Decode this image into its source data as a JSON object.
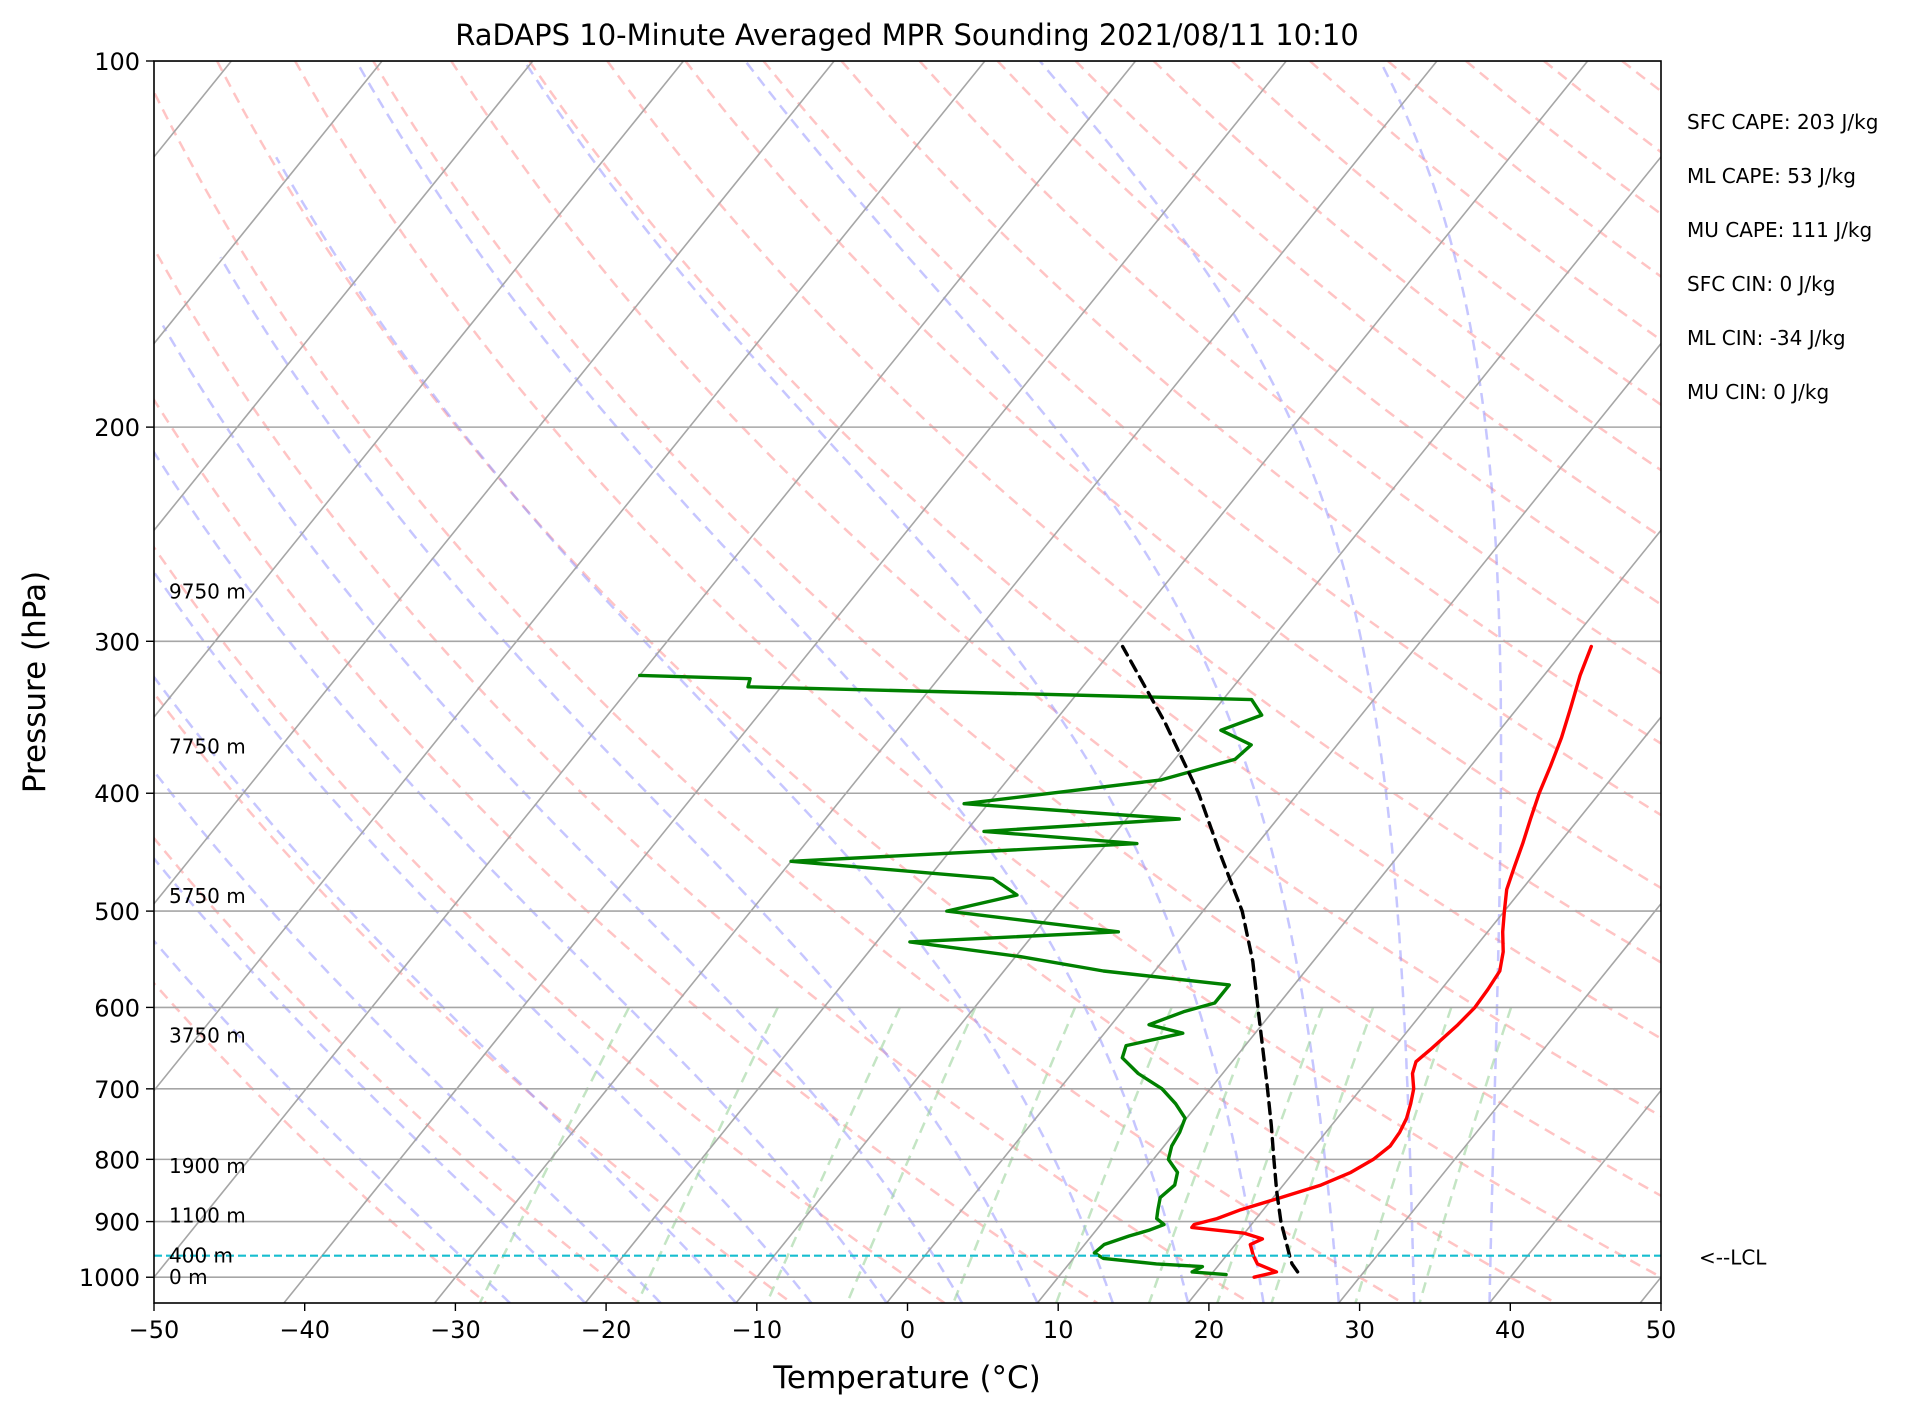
{
  "chart_data": {
    "type": "line",
    "title": "RaDAPS 10-Minute Averaged MPR Sounding 2021/08/11 10:10",
    "xlabel": "Temperature (°C)",
    "ylabel": "Pressure (hPa)",
    "xlim": [
      -50,
      50
    ],
    "ylim": [
      1050,
      100
    ],
    "y_scale": "log",
    "x_ticks": [
      -50,
      -40,
      -30,
      -20,
      -10,
      0,
      10,
      20,
      30,
      40,
      50
    ],
    "y_ticks": [
      100,
      200,
      300,
      400,
      500,
      600,
      700,
      800,
      900,
      1000
    ],
    "height_labels": [
      {
        "text": "9750 m",
        "p": 273
      },
      {
        "text": "7750 m",
        "p": 366
      },
      {
        "text": "5750 m",
        "p": 486
      },
      {
        "text": "3750 m",
        "p": 633
      },
      {
        "text": "1900 m",
        "p": 810
      },
      {
        "text": "1100 m",
        "p": 890
      },
      {
        "text": "400 m",
        "p": 960
      },
      {
        "text": "0 m",
        "p": 1000
      }
    ],
    "stats": [
      "SFC CAPE: 203 J/kg",
      "ML CAPE: 53 J/kg",
      "MU CAPE: 111 J/kg",
      "SFC CIN: 0 J/kg",
      "ML CIN: -34 J/kg",
      "MU CIN: 0 J/kg"
    ],
    "lcl": {
      "p": 960,
      "label": "<--LCL",
      "color": "#17becf"
    },
    "series": [
      {
        "key": "temperature",
        "color": "#ff0000",
        "points": [
          [
            1000,
            23.0
          ],
          [
            990,
            24.2
          ],
          [
            975,
            22.5
          ],
          [
            960,
            21.8
          ],
          [
            940,
            21.0
          ],
          [
            930,
            21.5
          ],
          [
            920,
            20.0
          ],
          [
            910,
            16.2
          ],
          [
            905,
            16.2
          ],
          [
            895,
            17.4
          ],
          [
            880,
            18.5
          ],
          [
            860,
            20.5
          ],
          [
            840,
            22.5
          ],
          [
            820,
            23.8
          ],
          [
            800,
            24.6
          ],
          [
            780,
            25.0
          ],
          [
            760,
            24.9
          ],
          [
            740,
            24.6
          ],
          [
            720,
            24.1
          ],
          [
            700,
            23.5
          ],
          [
            680,
            22.6
          ],
          [
            665,
            22.2
          ],
          [
            650,
            22.5
          ],
          [
            620,
            23.0
          ],
          [
            600,
            23.2
          ],
          [
            580,
            23.1
          ],
          [
            560,
            22.9
          ],
          [
            540,
            22.1
          ],
          [
            520,
            21.0
          ],
          [
            500,
            20.0
          ],
          [
            480,
            19.0
          ],
          [
            460,
            18.3
          ],
          [
            440,
            17.6
          ],
          [
            420,
            16.8
          ],
          [
            400,
            16.0
          ],
          [
            380,
            15.3
          ],
          [
            360,
            14.5
          ],
          [
            340,
            13.5
          ],
          [
            320,
            12.4
          ],
          [
            303,
            11.6
          ]
        ]
      },
      {
        "key": "dewpoint",
        "color": "#008000",
        "points": [
          [
            995,
            21.0
          ],
          [
            990,
            18.6
          ],
          [
            980,
            19.0
          ],
          [
            975,
            15.8
          ],
          [
            965,
            12.0
          ],
          [
            955,
            11.1
          ],
          [
            940,
            11.3
          ],
          [
            925,
            12.5
          ],
          [
            915,
            13.5
          ],
          [
            905,
            14.2
          ],
          [
            895,
            13.4
          ],
          [
            880,
            13.0
          ],
          [
            860,
            12.5
          ],
          [
            840,
            12.8
          ],
          [
            820,
            12.3
          ],
          [
            800,
            11.0
          ],
          [
            780,
            10.5
          ],
          [
            760,
            10.3
          ],
          [
            740,
            9.9
          ],
          [
            720,
            8.5
          ],
          [
            700,
            6.8
          ],
          [
            680,
            4.4
          ],
          [
            660,
            2.5
          ],
          [
            645,
            2.1
          ],
          [
            630,
            5.2
          ],
          [
            620,
            2.5
          ],
          [
            605,
            4.1
          ],
          [
            595,
            5.7
          ],
          [
            575,
            5.7
          ],
          [
            560,
            -3.4
          ],
          [
            545,
            -9.7
          ],
          [
            530,
            -17.8
          ],
          [
            520,
            -4.5
          ],
          [
            500,
            -17.0
          ],
          [
            485,
            -13.2
          ],
          [
            470,
            -15.7
          ],
          [
            455,
            -30.0
          ],
          [
            440,
            -8.0
          ],
          [
            430,
            -18.8
          ],
          [
            420,
            -6.5
          ],
          [
            408,
            -21.6
          ],
          [
            390,
            -9.8
          ],
          [
            375,
            -6.0
          ],
          [
            365,
            -5.7
          ],
          [
            355,
            -8.5
          ],
          [
            345,
            -6.6
          ],
          [
            335,
            -8.1
          ],
          [
            327,
            -42.2
          ],
          [
            322,
            -42.5
          ],
          [
            320,
            -50.0
          ]
        ]
      },
      {
        "key": "parcel",
        "color": "#000000",
        "dashed": true,
        "points": [
          [
            990,
            25.6
          ],
          [
            975,
            24.8
          ],
          [
            960,
            24.2
          ],
          [
            900,
            21.8
          ],
          [
            850,
            19.9
          ],
          [
            800,
            18.0
          ],
          [
            750,
            16.0
          ],
          [
            700,
            13.8
          ],
          [
            650,
            11.4
          ],
          [
            600,
            8.8
          ],
          [
            550,
            6.0
          ],
          [
            500,
            2.6
          ],
          [
            450,
            -1.8
          ],
          [
            400,
            -6.6
          ],
          [
            350,
            -12.6
          ],
          [
            303,
            -19.5
          ]
        ]
      }
    ]
  }
}
